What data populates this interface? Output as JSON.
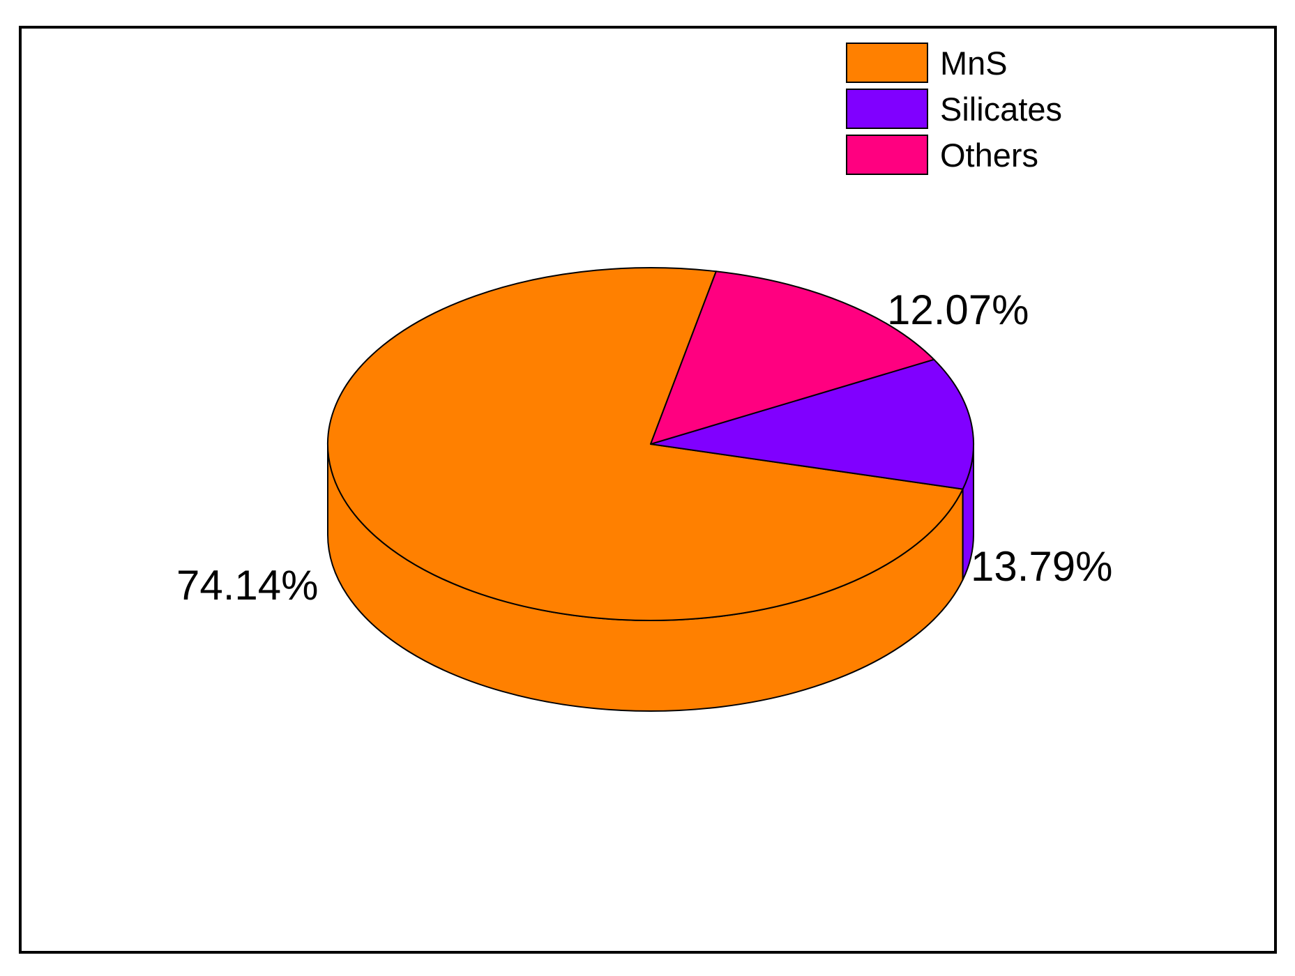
{
  "chart_data": {
    "type": "pie",
    "style": "3d",
    "title": "",
    "legend_position": "top-right",
    "slices": [
      {
        "name": "MnS",
        "value": 74.14,
        "label": "74.14%",
        "color": "#FF8000"
      },
      {
        "name": "Silicates",
        "value": 12.07,
        "label": "12.07%",
        "color": "#8000FF"
      },
      {
        "name": "Others",
        "value": 13.79,
        "label": "13.79%",
        "color": "#FF0080"
      }
    ]
  }
}
